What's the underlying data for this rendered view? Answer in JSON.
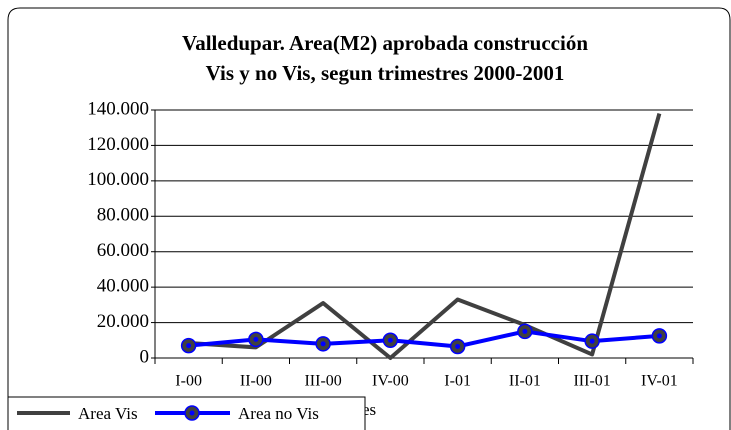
{
  "chart_data": {
    "type": "line",
    "title": "Valledupar. Area(M2) aprobada construcción",
    "subtitle": "Vis y no Vis, segun trimestres 2000-2001",
    "x_label": "es",
    "categories": [
      "I-00",
      "II-00",
      "III-00",
      "IV-00",
      "I-01",
      "II-01",
      "III-01",
      "IV-01"
    ],
    "series": [
      {
        "name": "Area Vis",
        "color": "#404040",
        "values": [
          8500,
          6000,
          31000,
          0,
          33000,
          18600,
          2000,
          138000
        ]
      },
      {
        "name": "Area no Vis",
        "color": "#0000ff",
        "values": [
          7000,
          10500,
          8000,
          10000,
          6500,
          15000,
          9500,
          12500
        ]
      }
    ],
    "ylim": [
      0,
      140000
    ],
    "yticks": [
      0,
      {
        "value": 20000,
        "label": "20.000"
      },
      {
        "value": 40000,
        "label": "40.000"
      },
      {
        "value": 60000,
        "label": "60.000"
      },
      {
        "value": 80000,
        "label": "80.000"
      },
      {
        "value": 100000,
        "label": "100.000"
      },
      {
        "value": 120000,
        "label": "120.000"
      },
      {
        "value": 140000,
        "label": "140.000"
      }
    ],
    "grid": true,
    "legend": "bottom-left"
  }
}
